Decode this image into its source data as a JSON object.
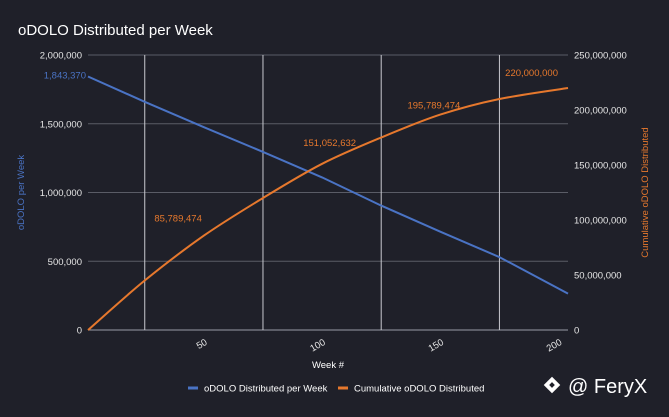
{
  "chart_data": {
    "type": "line",
    "title": "oDOLO Distributed per Week",
    "xlabel": "Week #",
    "ylabel_left": "oDOLO per Week",
    "ylabel_right": "Cumulative oDOLO Distributed",
    "xlim": [
      1,
      204
    ],
    "ylim_left": [
      0,
      2000000
    ],
    "ylim_right": [
      0,
      250000000
    ],
    "x_ticks": [
      50,
      100,
      150,
      200
    ],
    "x_tick_labels": [
      "50",
      "100",
      "150",
      "200"
    ],
    "y_left_ticks": [
      0,
      500000,
      1000000,
      1500000,
      2000000
    ],
    "y_left_tick_labels": [
      "0",
      "500,000",
      "1,000,000",
      "1,500,000",
      "2,000,000"
    ],
    "y_right_ticks": [
      0,
      50000000,
      100000000,
      150000000,
      200000000,
      250000000
    ],
    "y_right_tick_labels": [
      "0",
      "50,000,000",
      "100,000,000",
      "150,000,000",
      "200,000,000",
      "250,000,000"
    ],
    "vertical_gridlines_at": [
      25,
      75,
      125,
      175
    ],
    "grid": true,
    "legend_position": "bottom",
    "colors": {
      "weekly": "#4a73c4",
      "cumulative": "#e6782d",
      "background": "#1f2029",
      "grid": "#5a5c66"
    },
    "series": [
      {
        "name": "oDOLO Distributed per Week",
        "axis": "left",
        "color": "#4a73c4",
        "x": [
          1,
          25,
          50,
          75,
          100,
          125,
          150,
          175,
          204
        ],
        "values": [
          1843370,
          1660000,
          1475000,
          1295000,
          1110000,
          905000,
          715000,
          530000,
          265000
        ]
      },
      {
        "name": "Cumulative oDOLO Distributed",
        "axis": "right",
        "color": "#e6782d",
        "x": [
          1,
          25,
          50,
          75,
          100,
          125,
          150,
          175,
          204
        ],
        "values": [
          0,
          45000000,
          85789474,
          120000000,
          151052632,
          175000000,
          195789474,
          210000000,
          220000000
        ]
      }
    ],
    "data_labels": [
      {
        "series": 0,
        "x": 1,
        "text": "1,843,370"
      },
      {
        "series": 1,
        "x": 50,
        "text": "85,789,474"
      },
      {
        "series": 1,
        "x": 100,
        "text": "151,052,632"
      },
      {
        "series": 1,
        "x": 150,
        "text": "195,789,474"
      },
      {
        "series": 1,
        "x": 204,
        "text": "220,000,000"
      }
    ]
  },
  "watermark": {
    "text": "@ FeryX",
    "icon": "binance-diamond-icon"
  }
}
